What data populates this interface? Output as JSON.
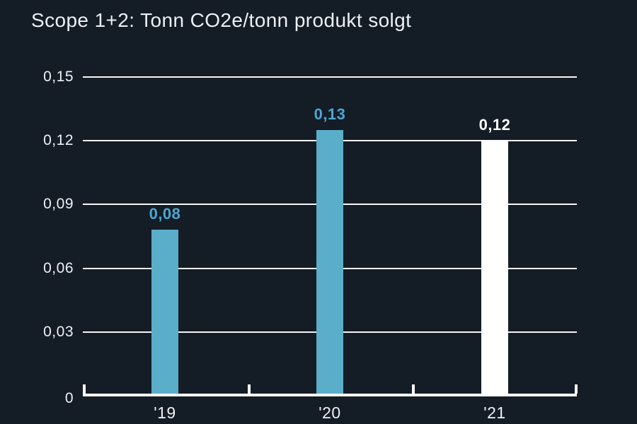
{
  "title": "Scope 1+2: Tonn CO2e/tonn produkt solgt",
  "chart_data": {
    "type": "bar",
    "title": "Scope 1+2: Tonn CO2e/tonn produkt solgt",
    "categories": [
      "'19",
      "'20",
      "'21"
    ],
    "values": [
      0.08,
      0.13,
      0.12
    ],
    "value_labels": [
      "0,08",
      "0,13",
      "0,12"
    ],
    "plotted_values": [
      0.078,
      0.125,
      0.12
    ],
    "bar_colors": [
      "#5baeca",
      "#5baeca",
      "#ffffff"
    ],
    "value_label_colors": [
      "#49a8d3",
      "#49a8d3",
      "#ffffff"
    ],
    "yticks": [
      0,
      0.03,
      0.06,
      0.09,
      0.12,
      0.15
    ],
    "ytick_labels": [
      "0",
      "0,03",
      "0,06",
      "0,09",
      "0,12",
      "0,15"
    ],
    "ylim": [
      0,
      0.15
    ],
    "xlabel": "",
    "ylabel": "",
    "grid": true,
    "legend_position": "none",
    "colors": {
      "background": "#141c26",
      "gridline": "#f6f7f8",
      "axis": "#fdfdfd",
      "text": "#eef1f5",
      "accent_blue": "#5baeca",
      "bar_white": "#ffffff"
    }
  }
}
